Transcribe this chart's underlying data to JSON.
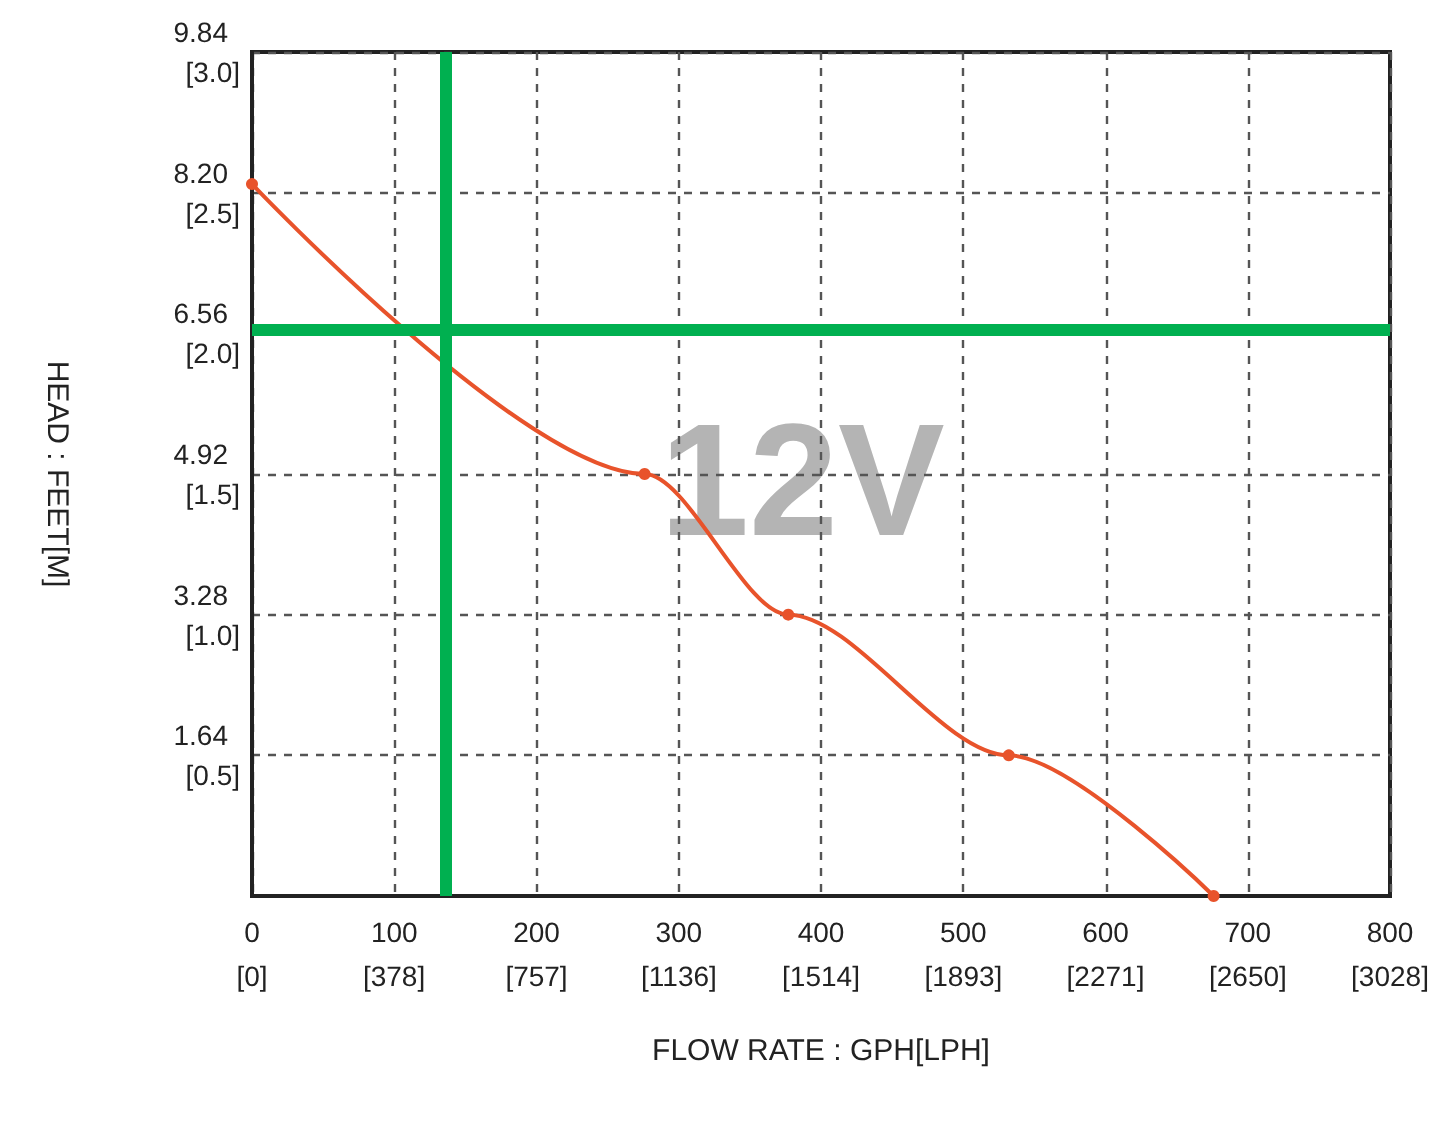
{
  "chart_data": {
    "type": "line",
    "xlabel": "FLOW RATE : GPH[LPH]",
    "ylabel": "HEAD : FEET[M]",
    "x": [
      0,
      276,
      377,
      532,
      676
    ],
    "series": [
      {
        "color": "#e8532b",
        "values": [
          8.3,
          4.92,
          3.28,
          1.64,
          0
        ]
      }
    ],
    "xlim": [
      0,
      800
    ],
    "xticks": [
      0,
      100,
      200,
      300,
      400,
      500,
      600,
      700,
      800
    ],
    "x2lim": [
      0,
      3028
    ],
    "x2ticks": [
      {
        "value": 0,
        "label": "[0]"
      },
      {
        "value": 378,
        "label": "[378]"
      },
      {
        "value": 757,
        "label": "[757]"
      },
      {
        "value": 1136,
        "label": "[1136]"
      },
      {
        "value": 1514,
        "label": "[1514]"
      },
      {
        "value": 1893,
        "label": "[1893]"
      },
      {
        "value": 2271,
        "label": "[2271]"
      },
      {
        "value": 2650,
        "label": "[2650]"
      },
      {
        "value": 3028,
        "label": "[3028]"
      }
    ],
    "ylim": [
      0,
      9.84
    ],
    "yticks": [
      {
        "value": 1.64,
        "label": "1.64"
      },
      {
        "value": 3.28,
        "label": "3.28"
      },
      {
        "value": 4.92,
        "label": "4.92"
      },
      {
        "value": 6.56,
        "label": "6.56"
      },
      {
        "value": 8.2,
        "label": "8.20"
      },
      {
        "value": 9.84,
        "label": "9.84"
      }
    ],
    "y2lim": [
      0,
      3.0
    ],
    "y2ticks": [
      {
        "value": 0.5,
        "label": "[0.5]"
      },
      {
        "value": 1.0,
        "label": "[1.0]"
      },
      {
        "value": 1.5,
        "label": "[1.5]"
      },
      {
        "value": 2.0,
        "label": "[2.0]"
      },
      {
        "value": 2.5,
        "label": "[2.5]"
      },
      {
        "value": 3.0,
        "label": "[3.0]"
      }
    ],
    "ref_lines": [
      {
        "axis": "x",
        "value": 136,
        "color": "#00b050"
      },
      {
        "axis": "y",
        "value": 6.6,
        "color": "#00b050"
      }
    ],
    "annotations": [
      "12V"
    ],
    "grid": true,
    "marker": "circle",
    "line_style": "solid"
  }
}
